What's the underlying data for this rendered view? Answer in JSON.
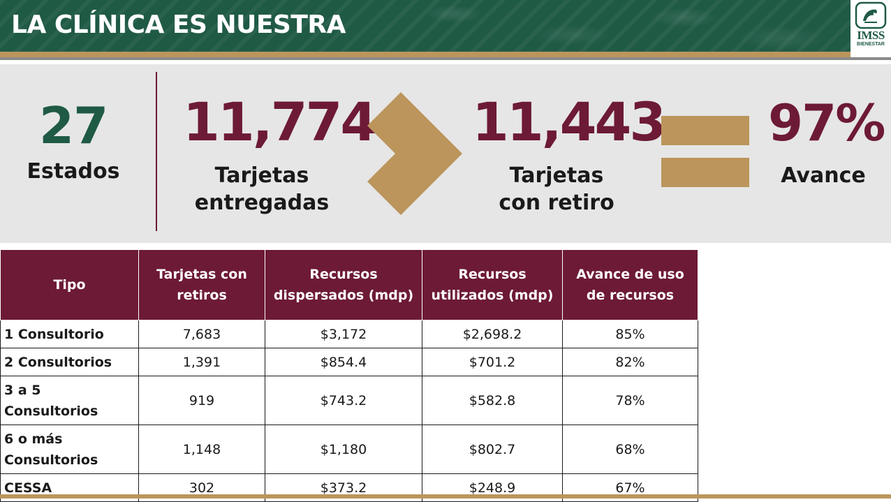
{
  "header": {
    "title": "LA CLÍNICA ES NUESTRA",
    "logo_text": "IMSS",
    "logo_subtext": "BIENESTAR"
  },
  "stats": {
    "states_value": "27",
    "states_label": "Estados",
    "delivered_value": "11,774",
    "delivered_label_line1": "Tarjetas",
    "delivered_label_line2": "entregadas",
    "withdrawn_value": "11,443",
    "withdrawn_label_line1": "Tarjetas",
    "withdrawn_label_line2": "con retiro",
    "progress_value": "97%",
    "progress_label": "Avance"
  },
  "table": {
    "headers": [
      "Tipo",
      "Tarjetas con retiros",
      "Recursos dispersados (mdp)",
      "Recursos utilizados (mdp)",
      "Avance de uso de recursos"
    ],
    "rows": [
      {
        "tipo": "1 Consultorio",
        "tarjetas": "7,683",
        "dispersados": "$3,172",
        "utilizados": "$2,698.2",
        "avance": "85%"
      },
      {
        "tipo": "2 Consultorios",
        "tarjetas": "1,391",
        "dispersados": "$854.4",
        "utilizados": "$701.2",
        "avance": "82%"
      },
      {
        "tipo": "3 a 5 Consultorios",
        "tarjetas": "919",
        "dispersados": "$743.2",
        "utilizados": "$582.8",
        "avance": "78%"
      },
      {
        "tipo": "6 o más Consultorios",
        "tarjetas": "1,148",
        "dispersados": "$1,180",
        "utilizados": "$802.7",
        "avance": "68%"
      },
      {
        "tipo": "CESSA",
        "tarjetas": "302",
        "dispersados": "$373.2",
        "utilizados": "$248.9",
        "avance": "67%"
      }
    ]
  },
  "colors": {
    "header_green": "#1f5a45",
    "gold": "#bc955c",
    "maroon": "#6d1a36",
    "panel_gray": "#e6e6e6"
  },
  "icons": {
    "chevron": "chevron-right-icon",
    "equals": "equals-icon",
    "logo": "imss-bienestar-logo"
  }
}
